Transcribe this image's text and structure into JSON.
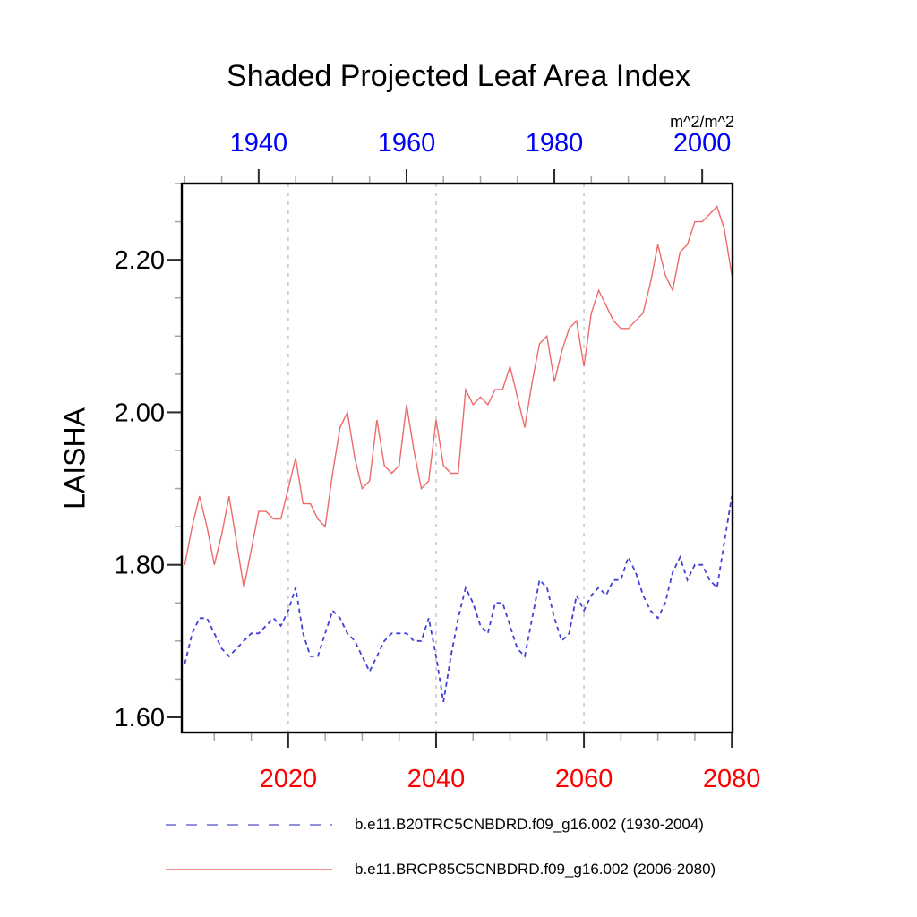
{
  "title": "Shaded Projected Leaf Area Index",
  "units_label": "m^2/m^2",
  "colors": {
    "top_axis_labels": "#0000ff",
    "bottom_axis_labels": "#ff0000",
    "blue_series": "#4040d8",
    "blue_series_legend": "#9090dd",
    "red_series": "#ee6a6a",
    "gridline": "#c9c9c9",
    "axis_box": "#000000",
    "major_tick": "#2a2a2a",
    "minor_tick": "#a3a3a3",
    "text": "#000000"
  },
  "chart_data": {
    "type": "line",
    "title": "Shaded Projected Leaf Area Index",
    "units": "m^2/m^2",
    "ylabel": "LAISHA",
    "ylim": [
      1.58,
      2.3
    ],
    "grid": "vertical-dotted-at-2020-2040-2060",
    "legend_position": "below-plot",
    "y_axis": {
      "tick_labels": [
        "2.20",
        "2.00",
        "1.80",
        "1.60"
      ],
      "tick_values": [
        2.2,
        2.0,
        1.8,
        1.6
      ],
      "minor_step": 0.05,
      "minor_range": [
        1.6,
        2.3
      ]
    },
    "bottom_axis": {
      "tick_labels": [
        "2020",
        "2040",
        "2060",
        "2080"
      ],
      "tick_values": [
        2020,
        2040,
        2060,
        2080
      ],
      "minor_step": 5,
      "minor_range": [
        2010,
        2080
      ],
      "x_range": [
        2005.6,
        2080.1
      ]
    },
    "top_axis": {
      "tick_labels": [
        "1940",
        "1960",
        "1980",
        "2000"
      ],
      "tick_values": [
        1940,
        1960,
        1980,
        2000
      ],
      "minor_step": 5,
      "minor_range": [
        1930,
        2000
      ],
      "year_offset_to_bottom": 76
    },
    "gridline_years_bottom": [
      2020,
      2040,
      2060
    ],
    "series": [
      {
        "name": "b.e11.B20TRC5CNBDRD.f09_g16.002 (1930-2004)",
        "axis": "top",
        "style": "dashed",
        "color": "#4040d8",
        "x_start": 1930,
        "x_step": 1,
        "values": [
          1.67,
          1.71,
          1.73,
          1.73,
          1.71,
          1.69,
          1.68,
          1.69,
          1.7,
          1.71,
          1.71,
          1.72,
          1.73,
          1.72,
          1.74,
          1.77,
          1.71,
          1.68,
          1.68,
          1.71,
          1.74,
          1.73,
          1.71,
          1.7,
          1.68,
          1.66,
          1.68,
          1.7,
          1.71,
          1.71,
          1.71,
          1.7,
          1.7,
          1.73,
          1.68,
          1.62,
          1.68,
          1.73,
          1.77,
          1.75,
          1.72,
          1.71,
          1.75,
          1.75,
          1.72,
          1.69,
          1.68,
          1.73,
          1.78,
          1.77,
          1.73,
          1.7,
          1.71,
          1.76,
          1.74,
          1.76,
          1.77,
          1.76,
          1.78,
          1.78,
          1.81,
          1.79,
          1.76,
          1.74,
          1.73,
          1.75,
          1.79,
          1.81,
          1.78,
          1.8,
          1.8,
          1.78,
          1.77,
          1.83,
          1.89
        ]
      },
      {
        "name": "b.e11.BRCP85C5CNBDRD.f09_g16.002 (2006-2080)",
        "axis": "bottom",
        "style": "solid",
        "color": "#ee6a6a",
        "x_start": 2006,
        "x_step": 1,
        "values": [
          1.8,
          1.85,
          1.89,
          1.85,
          1.8,
          1.84,
          1.89,
          1.83,
          1.77,
          1.82,
          1.87,
          1.87,
          1.86,
          1.86,
          1.9,
          1.94,
          1.88,
          1.88,
          1.86,
          1.85,
          1.92,
          1.98,
          2.0,
          1.94,
          1.9,
          1.91,
          1.99,
          1.93,
          1.92,
          1.93,
          2.01,
          1.95,
          1.9,
          1.91,
          1.99,
          1.93,
          1.92,
          1.92,
          2.03,
          2.01,
          2.02,
          2.01,
          2.03,
          2.03,
          2.06,
          2.02,
          1.98,
          2.04,
          2.09,
          2.1,
          2.04,
          2.08,
          2.11,
          2.12,
          2.06,
          2.13,
          2.16,
          2.14,
          2.12,
          2.11,
          2.11,
          2.12,
          2.13,
          2.17,
          2.22,
          2.18,
          2.16,
          2.21,
          2.22,
          2.25,
          2.25,
          2.26,
          2.27,
          2.24,
          2.18
        ]
      }
    ]
  },
  "legend": {
    "entries": [
      {
        "label": "b.e11.B20TRC5CNBDRD.f09_g16.002 (1930-2004)",
        "style": "dashed",
        "color": "#9090dd"
      },
      {
        "label": "b.e11.BRCP85C5CNBDRD.f09_g16.002 (2006-2080)",
        "style": "solid",
        "color": "#ee6a6a"
      }
    ]
  }
}
